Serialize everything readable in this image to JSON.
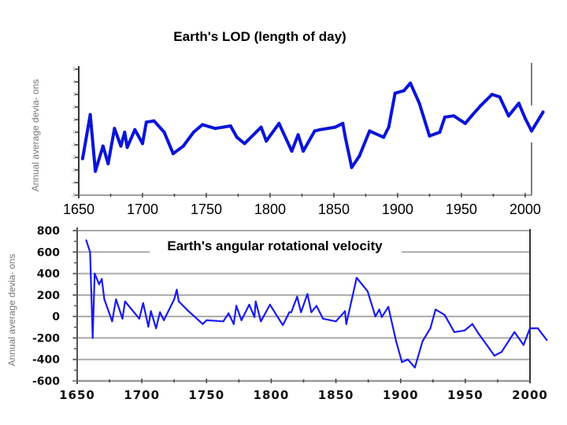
{
  "chart_data": [
    {
      "type": "line",
      "title": "Earth's LOD (length of day)",
      "ylabel": "Annual average devia- ons",
      "xlabel": "",
      "xlim": [
        1650,
        2005
      ],
      "ylim": [
        -5,
        5
      ],
      "grid": false,
      "line_color": "#0a14d8",
      "x_ticks": [
        "1650",
        "1700",
        "1750",
        "1800",
        "1850",
        "1900",
        "1950",
        "2000"
      ],
      "y_ticks": [
        "5",
        "4",
        "3",
        "2",
        "1",
        "0",
        "-1",
        "-2",
        "-3",
        "-4",
        "-5"
      ],
      "series": [
        {
          "x": [
            1653,
            1659,
            1663,
            1669,
            1673,
            1678,
            1683,
            1686,
            1688,
            1694,
            1700,
            1703,
            1709,
            1717,
            1724,
            1732,
            1740,
            1747,
            1757,
            1769,
            1774,
            1780,
            1793,
            1797,
            1807,
            1817,
            1822,
            1826,
            1835,
            1839,
            1851,
            1857,
            1859,
            1864,
            1870,
            1878,
            1889,
            1893,
            1898,
            1905,
            1910,
            1917,
            1925,
            1933,
            1937,
            1944,
            1953,
            1958,
            1965,
            1974,
            1980,
            1987,
            1995,
            2000,
            2005,
            2014
          ],
          "y": [
            -2.1,
            1.4,
            -3.1,
            -1.1,
            -2.5,
            0.3,
            -1.1,
            0,
            -1.2,
            0.2,
            -0.9,
            0.8,
            0.9,
            0,
            -1.7,
            -1.1,
            0,
            0.6,
            0.3,
            0.5,
            -0.4,
            -0.9,
            0.4,
            -0.7,
            0.7,
            -1.5,
            -0.2,
            -1.5,
            0.1,
            0.2,
            0.4,
            0.7,
            -0.4,
            -2.8,
            -1.9,
            0.1,
            -0.4,
            0.4,
            3.1,
            3.3,
            3.9,
            2.3,
            -0.3,
            0,
            1.2,
            1.3,
            0.7,
            1.3,
            2.1,
            3.0,
            2.8,
            1.3,
            2.3,
            1.1,
            0.1,
            1.6
          ]
        }
      ]
    },
    {
      "type": "line",
      "title": "Earth's angular rotational velocity",
      "ylabel": "Annual average devia- ons",
      "xlabel": "",
      "xlim": [
        1650,
        2000
      ],
      "ylim": [
        -600,
        800
      ],
      "grid": true,
      "line_color": "#1a1aee",
      "x_ticks": [
        "1650",
        "1700",
        "1750",
        "1800",
        "1850",
        "1900",
        "1950",
        "2000"
      ],
      "y_ticks": [
        "800",
        "600",
        "400",
        "200",
        "0",
        "-200",
        "-400",
        "-600"
      ],
      "series": [
        {
          "x": [
            1657,
            1660,
            1662,
            1663.5,
            1667,
            1669,
            1671,
            1677,
            1680,
            1685,
            1687,
            1698,
            1701,
            1705,
            1707,
            1711,
            1714,
            1717,
            1725,
            1727,
            1728.5,
            1736,
            1747,
            1750,
            1763,
            1767,
            1771,
            1773,
            1777,
            1783,
            1787,
            1788,
            1792,
            1799,
            1805,
            1809,
            1814,
            1815.5,
            1820,
            1823,
            1828,
            1831,
            1835,
            1840,
            1850,
            1857,
            1858,
            1862,
            1866,
            1874.5,
            1880.5,
            1883.5,
            1885.5,
            1890.5,
            1896.5,
            1901,
            1905.5,
            1911,
            1917,
            1923,
            1927,
            1934,
            1941.5,
            1949.5,
            1955.5,
            1960,
            1966,
            1972.5,
            1978,
            1988,
            1995,
            2000,
            2006,
            2013
          ],
          "y": [
            710,
            600,
            -200,
            400,
            300,
            350,
            160,
            -45,
            160,
            -20,
            140,
            -20,
            125,
            -95,
            50,
            -110,
            40,
            -35,
            160,
            250,
            140,
            50,
            -70,
            -35,
            -45,
            30,
            -70,
            100,
            -35,
            110,
            -5,
            140,
            -45,
            110,
            -5,
            -80,
            40,
            40,
            185,
            40,
            210,
            40,
            100,
            -20,
            -45,
            50,
            -70,
            145,
            360,
            235,
            0,
            65,
            -5,
            90,
            -230,
            -425,
            -400,
            -475,
            -230,
            -110,
            65,
            15,
            -145,
            -130,
            -70,
            -155,
            -255,
            -365,
            -330,
            -145,
            -265,
            -110,
            -110,
            -220
          ]
        }
      ]
    }
  ]
}
